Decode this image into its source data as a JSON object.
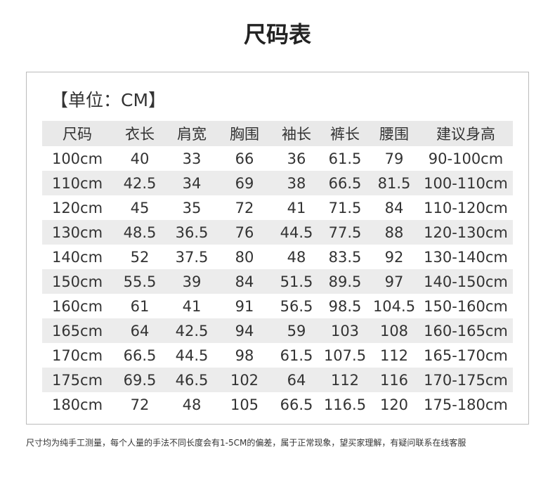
{
  "header": {
    "title": "尺码表"
  },
  "unit": "【单位：CM】",
  "table": {
    "columns": [
      "尺码",
      "衣长",
      "肩宽",
      "胸围",
      "袖长",
      "裤长",
      "腰围",
      "建议身高"
    ],
    "rows": [
      [
        "100cm",
        "40",
        "33",
        "66",
        "36",
        "61.5",
        "79",
        "90-100cm"
      ],
      [
        "110cm",
        "42.5",
        "34",
        "69",
        "38",
        "66.5",
        "81.5",
        "100-110cm"
      ],
      [
        "120cm",
        "45",
        "35",
        "72",
        "41",
        "71.5",
        "84",
        "110-120cm"
      ],
      [
        "130cm",
        "48.5",
        "36.5",
        "76",
        "44.5",
        "77.5",
        "88",
        "120-130cm"
      ],
      [
        "140cm",
        "52",
        "37.5",
        "80",
        "48",
        "83.5",
        "92",
        "130-140cm"
      ],
      [
        "150cm",
        "55.5",
        "39",
        "84",
        "51.5",
        "89.5",
        "97",
        "140-150cm"
      ],
      [
        "160cm",
        "61",
        "41",
        "91",
        "56.5",
        "98.5",
        "104.5",
        "150-160cm"
      ],
      [
        "165cm",
        "64",
        "42.5",
        "94",
        "59",
        "103",
        "108",
        "160-165cm"
      ],
      [
        "170cm",
        "66.5",
        "44.5",
        "98",
        "61.5",
        "107.5",
        "112",
        "165-170cm"
      ],
      [
        "175cm",
        "69.5",
        "46.5",
        "102",
        "64",
        "112",
        "116",
        "170-175cm"
      ],
      [
        "180cm",
        "72",
        "48",
        "105",
        "66.5",
        "116.5",
        "120",
        "175-180cm"
      ]
    ]
  },
  "footnote": "尺寸均为纯手工测量，每个人量的手法不同长度会有1-5CM的偏差，属于正常现象，望买家理解，有疑问联系在线客服"
}
